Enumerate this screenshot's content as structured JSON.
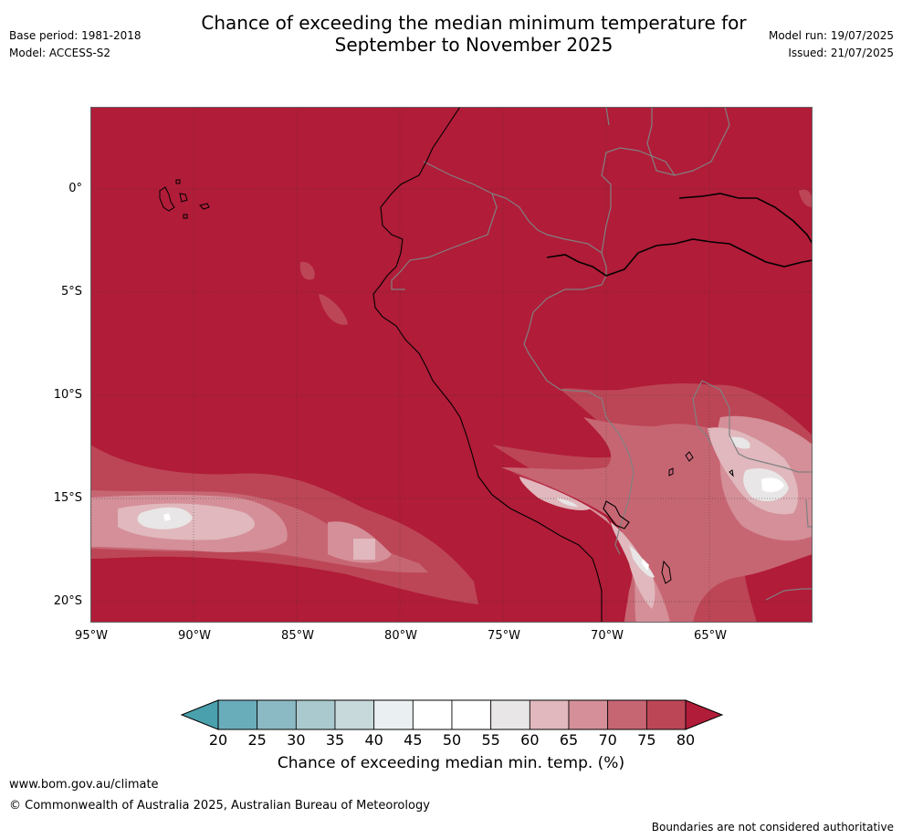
{
  "header": {
    "title_line1": "Chance of exceeding the median minimum temperature for",
    "title_line2": "September to November 2025",
    "base_period": "Base period: 1981-2018",
    "model": "Model: ACCESS-S2",
    "model_run": "Model run: 19/07/2025",
    "issued": "Issued: 21/07/2025"
  },
  "map": {
    "lat_ticks": [
      "0°",
      "5°S",
      "10°S",
      "15°S",
      "20°S"
    ],
    "lon_ticks": [
      "95°W",
      "90°W",
      "85°W",
      "80°W",
      "75°W",
      "70°W",
      "65°W"
    ],
    "dominant_color": "#b11c38",
    "dominant_category": "above 80%"
  },
  "colorbar": {
    "ticks": [
      "20",
      "25",
      "30",
      "35",
      "40",
      "45",
      "50",
      "55",
      "60",
      "65",
      "70",
      "75",
      "80"
    ],
    "colors": [
      "#4aa1ad",
      "#6aadba",
      "#8cbac4",
      "#aac9ce",
      "#c8d9dc",
      "#eaeff1",
      "#ffffff",
      "#ffffff",
      "#e8e6e6",
      "#e0b8bd",
      "#d48f98",
      "#c76673",
      "#bc4656",
      "#b11c38"
    ],
    "label": "Chance of exceeding median min. temp. (%)"
  },
  "footer": {
    "url": "www.bom.gov.au/climate",
    "copyright": "© Commonwealth of Australia 2025, Australian Bureau of Meteorology",
    "disclaimer": "Boundaries are not considered authoritative"
  }
}
